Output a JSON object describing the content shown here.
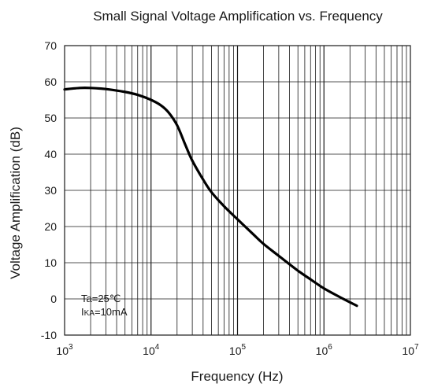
{
  "chart_data": {
    "type": "line",
    "title": "Small Signal Voltage Amplification vs. Frequency",
    "xlabel": "Frequency (Hz)",
    "ylabel": "Voltage Amplification (dB)",
    "x_scale": "log",
    "xlim": [
      1000,
      10000000
    ],
    "ylim": [
      -10,
      70
    ],
    "grid": true,
    "x_ticks": [
      {
        "base": "10",
        "exp": "3"
      },
      {
        "base": "10",
        "exp": "4"
      },
      {
        "base": "10",
        "exp": "5"
      },
      {
        "base": "10",
        "exp": "6"
      },
      {
        "base": "10",
        "exp": "7"
      }
    ],
    "y_ticks": [
      "70",
      "60",
      "50",
      "40",
      "30",
      "20",
      "10",
      "0",
      "-10"
    ],
    "annotation": {
      "line1": "Ta=25℃",
      "line2_main": "I",
      "line2_sub": "KA",
      "line2_rest": "=10mA"
    },
    "series": [
      {
        "x": [
          1000,
          1500,
          2000,
          3000,
          5000,
          7000,
          10000,
          13000,
          16000,
          20000,
          25000,
          30000,
          40000,
          50000,
          70000,
          100000,
          150000,
          200000,
          300000,
          500000,
          700000,
          1000000,
          1500000,
          2400000
        ],
        "y": [
          57.9,
          58.3,
          58.3,
          58.0,
          57.2,
          56.4,
          55.0,
          53.5,
          51.5,
          48.0,
          42.5,
          38.2,
          33.0,
          29.5,
          25.6,
          22.0,
          18.0,
          15.2,
          11.9,
          7.8,
          5.4,
          2.9,
          0.6,
          -1.9
        ]
      }
    ]
  }
}
